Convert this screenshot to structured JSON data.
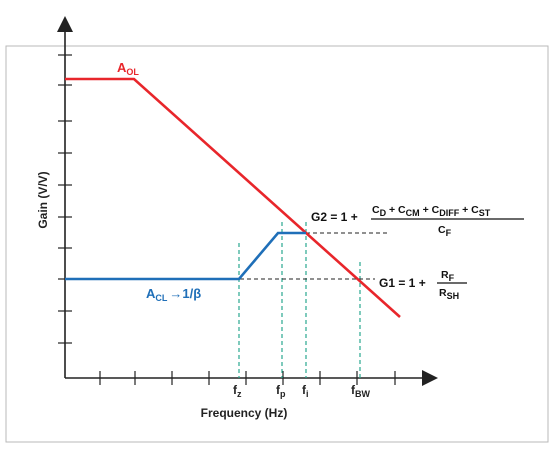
{
  "colors": {
    "aol": "#e8262b",
    "acl": "#1f6fb8",
    "guide": "#2aa88f",
    "axis": "#222222",
    "frame": "#b9b9b9"
  },
  "axes": {
    "ylabel": "Gain (V/V)",
    "xlabel": "Frequency (Hz)"
  },
  "curves": {
    "aol": {
      "main": "A",
      "sub": "OL"
    },
    "acl": {
      "main": "A",
      "sub": "CL",
      "arrow": "→",
      "tail": "1/β"
    }
  },
  "freq_marks": [
    {
      "main": "f",
      "sub": "z"
    },
    {
      "main": "f",
      "sub": "p"
    },
    {
      "main": "f",
      "sub": "i"
    },
    {
      "main": "f",
      "sub": "BW"
    }
  ],
  "g2": {
    "lhs": "G2 = 1 +",
    "num": [
      {
        "main": "C",
        "sub": "D"
      },
      {
        "main": " + C",
        "sub": "CM"
      },
      {
        "main": " + C",
        "sub": "DIFF"
      },
      {
        "main": " + C",
        "sub": "ST"
      }
    ],
    "den": {
      "main": "C",
      "sub": "F"
    }
  },
  "g1": {
    "lhs": "G1 = 1 +",
    "num": {
      "main": "R",
      "sub": "F"
    },
    "den": {
      "main": "R",
      "sub": "SH"
    }
  }
}
